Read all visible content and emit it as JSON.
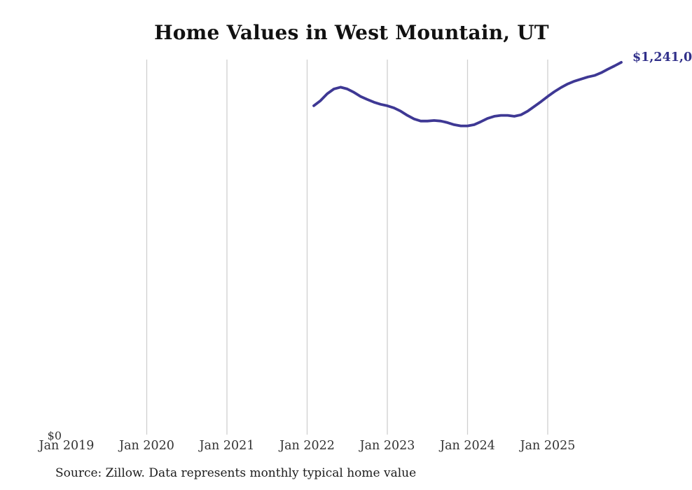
{
  "page": {
    "title": "Home Values in West Mountain, UT",
    "source_note": "Source: Zillow. Data represents monthly typical home value",
    "y_zero_label": "$0",
    "end_point_label": "$1,241,0"
  },
  "colors": {
    "line": "#3e3894",
    "end_label": "#31308a",
    "gridline": "#cfcfcf",
    "axis_label": "#333333",
    "title": "#111111",
    "source": "#1c1c1c",
    "background": "#ffffff"
  },
  "chart_data": {
    "type": "line",
    "title": "Home Values in West Mountain, UT",
    "xlabel": "",
    "ylabel": "",
    "ylim": [
      0,
      1250000
    ],
    "grid": "vertical-only",
    "legend": "none",
    "y_tick_labels": [
      "$0"
    ],
    "x_ticks": [
      {
        "label": "Jan 2019",
        "year": 2019,
        "gridline": false
      },
      {
        "label": "Jan 2020",
        "year": 2020,
        "gridline": true
      },
      {
        "label": "Jan 2021",
        "year": 2021,
        "gridline": true
      },
      {
        "label": "Jan 2022",
        "year": 2022,
        "gridline": true
      },
      {
        "label": "Jan 2023",
        "year": 2023,
        "gridline": true
      },
      {
        "label": "Jan 2024",
        "year": 2024,
        "gridline": true
      },
      {
        "label": "Jan 2025",
        "year": 2025,
        "gridline": true
      }
    ],
    "series": [
      {
        "name": "Monthly typical home value",
        "end_label_visible": "$1,241,0",
        "months": [
          "2022-02",
          "2022-03",
          "2022-04",
          "2022-05",
          "2022-06",
          "2022-07",
          "2022-08",
          "2022-09",
          "2022-10",
          "2022-11",
          "2022-12",
          "2023-01",
          "2023-02",
          "2023-03",
          "2023-04",
          "2023-05",
          "2023-06",
          "2023-07",
          "2023-08",
          "2023-09",
          "2023-10",
          "2023-11",
          "2023-12",
          "2024-01",
          "2024-02",
          "2024-03",
          "2024-04",
          "2024-05",
          "2024-06",
          "2024-07",
          "2024-08",
          "2024-09",
          "2024-10",
          "2024-11",
          "2024-12",
          "2025-01",
          "2025-02",
          "2025-03",
          "2025-04",
          "2025-05",
          "2025-06",
          "2025-07",
          "2025-08",
          "2025-09",
          "2025-10",
          "2025-11",
          "2025-12"
        ],
        "values": [
          1096000,
          1113000,
          1136000,
          1152000,
          1158000,
          1152000,
          1141000,
          1127000,
          1117000,
          1108000,
          1101000,
          1096000,
          1089000,
          1078000,
          1064000,
          1052000,
          1045000,
          1045000,
          1047000,
          1045000,
          1040000,
          1033000,
          1029000,
          1029000,
          1033000,
          1043000,
          1054000,
          1061000,
          1064000,
          1064000,
          1061000,
          1066000,
          1078000,
          1094000,
          1110000,
          1127000,
          1143000,
          1157000,
          1169000,
          1178000,
          1185000,
          1192000,
          1197000,
          1206000,
          1218000,
          1229000,
          1241000
        ]
      }
    ]
  }
}
